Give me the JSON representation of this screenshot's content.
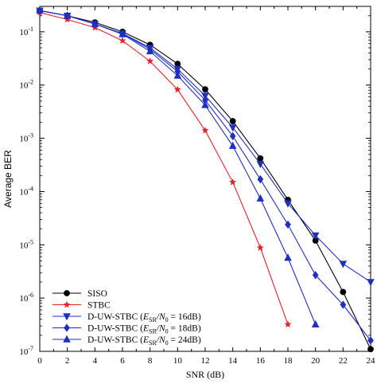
{
  "chart_data": {
    "type": "line",
    "title": "",
    "xlabel": "SNR (dB)",
    "ylabel": "Average BER",
    "xlim": [
      0,
      24
    ],
    "ylim": [
      1e-07,
      0.3
    ],
    "yscale": "log",
    "grid": false,
    "legend_position": "bottom-left",
    "x_ticks": [
      "0",
      "2",
      "4",
      "6",
      "8",
      "10",
      "12",
      "14",
      "16",
      "18",
      "20",
      "22",
      "24"
    ],
    "y_ticks": [
      {
        "value": 1e-07,
        "mantissa": "10",
        "exp": "-7"
      },
      {
        "value": 1e-06,
        "mantissa": "10",
        "exp": "-6"
      },
      {
        "value": 1e-05,
        "mantissa": "10",
        "exp": "-5"
      },
      {
        "value": 0.0001,
        "mantissa": "10",
        "exp": "-4"
      },
      {
        "value": 0.001,
        "mantissa": "10",
        "exp": "-3"
      },
      {
        "value": 0.01,
        "mantissa": "10",
        "exp": "-2"
      },
      {
        "value": 0.1,
        "mantissa": "10",
        "exp": "-1"
      }
    ],
    "series": [
      {
        "name": "SISO",
        "color": "#000000",
        "marker": "circle",
        "x": [
          0,
          2,
          4,
          6,
          8,
          10,
          12,
          14,
          16,
          18,
          20,
          22,
          24
        ],
        "y": [
          0.25,
          0.2,
          0.15,
          0.1,
          0.057,
          0.025,
          0.0083,
          0.0021,
          0.00042,
          7e-05,
          1.2e-05,
          1.3e-06,
          1.1e-07
        ]
      },
      {
        "name": "STBC",
        "color": "#e8212a",
        "marker": "star",
        "x": [
          0,
          2,
          4,
          6,
          8,
          10,
          12,
          14,
          16,
          18
        ],
        "y": [
          0.23,
          0.17,
          0.12,
          0.068,
          0.028,
          0.0082,
          0.0014,
          0.00015,
          8.8e-06,
          3.2e-07
        ]
      },
      {
        "name_prefix": "D-UW-STBC (",
        "name_math": "E",
        "name_sub": "SR",
        "name_mid": "/N",
        "name_sub2": "0",
        "name_suffix": " = 16dB)",
        "color": "#1f2fbf",
        "marker": "triangle-down",
        "x": [
          0,
          2,
          4,
          6,
          8,
          10,
          12,
          14,
          16,
          18,
          20,
          22,
          24
        ],
        "y": [
          0.25,
          0.2,
          0.14,
          0.093,
          0.05,
          0.02,
          0.0063,
          0.0016,
          0.00033,
          6e-05,
          1.5e-05,
          4.4e-06,
          2e-06
        ]
      },
      {
        "name_prefix": "D-UW-STBC (",
        "name_math": "E",
        "name_sub": "SR",
        "name_mid": "/N",
        "name_sub2": "0",
        "name_suffix": " = 18dB)",
        "color": "#1f2fbf",
        "marker": "diamond",
        "x": [
          0,
          2,
          4,
          6,
          8,
          10,
          12,
          14,
          16,
          18,
          20,
          22,
          24
        ],
        "y": [
          0.25,
          0.2,
          0.14,
          0.092,
          0.047,
          0.018,
          0.0052,
          0.0011,
          0.00017,
          2.4e-05,
          2.7e-06,
          7.5e-07,
          1.6e-07
        ]
      },
      {
        "name_prefix": "D-UW-STBC (",
        "name_math": "E",
        "name_sub": "SR",
        "name_mid": "/N",
        "name_sub2": "0",
        "name_suffix": " = 24dB)",
        "color": "#1f2fbf",
        "marker": "triangle-up",
        "x": [
          0,
          2,
          4,
          6,
          8,
          10,
          12,
          14,
          16,
          18,
          20
        ],
        "y": [
          0.25,
          0.2,
          0.14,
          0.09,
          0.043,
          0.015,
          0.0042,
          0.00072,
          7.4e-05,
          5.7e-06,
          3.2e-07
        ]
      }
    ]
  }
}
